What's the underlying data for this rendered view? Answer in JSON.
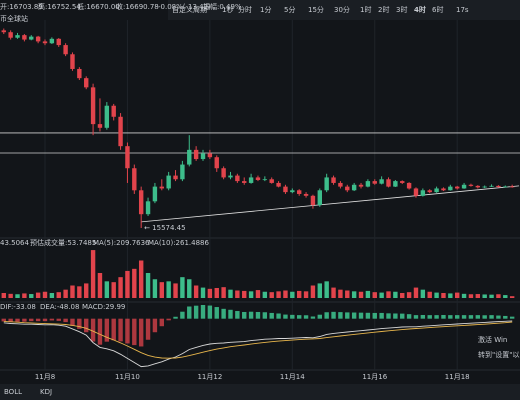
{
  "header": {
    "site": "币全球站",
    "ohlc": [
      "开:16703.89",
      "高:16752.54",
      "低:16670.00",
      "收:16690.78",
      "-0.08%(-13.42)",
      "振幅:0.49%"
    ]
  },
  "toolbar": {
    "periods": [
      "自定义周期",
      "1秒",
      "分时",
      "1分",
      "5分",
      "15分",
      "30分",
      "1时",
      "2时",
      "3时",
      "4时",
      "6时",
      "17s"
    ],
    "active": 10
  },
  "bottom_tabs": [
    "BOLL",
    "KDJ"
  ],
  "watermark": [
    "激活 Win",
    "转到\"设置\"以"
  ],
  "chart_data": {
    "type": "candlestick",
    "categories": [
      null,
      null,
      null,
      null,
      null,
      null,
      "11月8",
      null,
      null,
      null,
      null,
      null,
      null,
      null,
      null,
      null,
      null,
      null,
      "11月10",
      null,
      null,
      null,
      null,
      null,
      null,
      null,
      null,
      null,
      null,
      null,
      "11月12",
      null,
      null,
      null,
      null,
      null,
      null,
      null,
      null,
      null,
      null,
      null,
      "11月14",
      null,
      null,
      null,
      null,
      null,
      null,
      null,
      null,
      null,
      null,
      null,
      "11月16",
      null,
      null,
      null,
      null,
      null,
      null,
      null,
      null,
      null,
      null,
      null,
      "11月18",
      null,
      null,
      null,
      null,
      null,
      null,
      null,
      null
    ],
    "candles": [
      [
        20950,
        21000,
        20850,
        20900
      ],
      [
        20900,
        20950,
        20700,
        20750
      ],
      [
        20750,
        20880,
        20720,
        20820
      ],
      [
        20820,
        20850,
        20650,
        20700
      ],
      [
        20700,
        20820,
        20680,
        20780
      ],
      [
        20780,
        20800,
        20600,
        20650
      ],
      [
        20650,
        20700,
        20550,
        20600
      ],
      [
        20600,
        20760,
        20580,
        20720
      ],
      [
        20720,
        20740,
        20500,
        20550
      ],
      [
        20550,
        20600,
        20250,
        20300
      ],
      [
        20300,
        20350,
        19850,
        19900
      ],
      [
        19900,
        19950,
        19600,
        19650
      ],
      [
        19650,
        19700,
        19350,
        19400
      ],
      [
        19400,
        19500,
        18100,
        18400
      ],
      [
        18400,
        19100,
        18200,
        18300
      ],
      [
        18300,
        19000,
        18250,
        18900
      ],
      [
        18900,
        18950,
        18500,
        18600
      ],
      [
        18600,
        18700,
        17700,
        17800
      ],
      [
        17800,
        17900,
        16800,
        17200
      ],
      [
        17200,
        17300,
        16500,
        16600
      ],
      [
        16600,
        16700,
        15574.45,
        15950
      ],
      [
        15950,
        16400,
        15900,
        16300
      ],
      [
        16300,
        16800,
        16250,
        16700
      ],
      [
        16700,
        16900,
        16600,
        16650
      ],
      [
        16650,
        17100,
        16600,
        17000
      ],
      [
        17000,
        17150,
        16850,
        16900
      ],
      [
        16900,
        17400,
        16850,
        17300
      ],
      [
        17300,
        18100,
        17250,
        17700
      ],
      [
        17700,
        17800,
        17400,
        17450
      ],
      [
        17450,
        17700,
        17400,
        17600
      ],
      [
        17600,
        17700,
        17450,
        17500
      ],
      [
        17500,
        17550,
        17100,
        17200
      ],
      [
        17200,
        17250,
        16900,
        16950
      ],
      [
        16950,
        17100,
        16900,
        17000
      ],
      [
        17000,
        17050,
        16800,
        16850
      ],
      [
        16850,
        16950,
        16750,
        16800
      ],
      [
        16800,
        17050,
        16780,
        16950
      ],
      [
        16950,
        17000,
        16850,
        16880
      ],
      [
        16880,
        16980,
        16850,
        16900
      ],
      [
        16900,
        16950,
        16780,
        16800
      ],
      [
        16800,
        16850,
        16680,
        16700
      ],
      [
        16700,
        16750,
        16500,
        16550
      ],
      [
        16550,
        16650,
        16520,
        16600
      ],
      [
        16600,
        16630,
        16450,
        16500
      ],
      [
        16500,
        16550,
        16400,
        16450
      ],
      [
        16450,
        16480,
        16100,
        16200
      ],
      [
        16200,
        16650,
        16150,
        16600
      ],
      [
        16600,
        17050,
        16550,
        16950
      ],
      [
        16950,
        17000,
        16750,
        16800
      ],
      [
        16800,
        16850,
        16650,
        16700
      ],
      [
        16700,
        16750,
        16550,
        16600
      ],
      [
        16600,
        16800,
        16580,
        16750
      ],
      [
        16750,
        16800,
        16650,
        16700
      ],
      [
        16700,
        16900,
        16680,
        16850
      ],
      [
        16850,
        16900,
        16750,
        16780
      ],
      [
        16780,
        16980,
        16760,
        16900
      ],
      [
        16900,
        16950,
        16680,
        16700
      ],
      [
        16700,
        16880,
        16690,
        16850
      ],
      [
        16850,
        16870,
        16770,
        16800
      ],
      [
        16800,
        16820,
        16620,
        16650
      ],
      [
        16650,
        16680,
        16400,
        16450
      ],
      [
        16450,
        16650,
        16430,
        16600
      ],
      [
        16600,
        16630,
        16520,
        16550
      ],
      [
        16550,
        16700,
        16530,
        16650
      ],
      [
        16650,
        16680,
        16580,
        16600
      ],
      [
        16600,
        16750,
        16590,
        16700
      ],
      [
        16700,
        16720,
        16620,
        16650
      ],
      [
        16650,
        16800,
        16640,
        16750
      ],
      [
        16750,
        16780,
        16700,
        16720
      ],
      [
        16720,
        16740,
        16650,
        16680
      ],
      [
        16680,
        16730,
        16660,
        16700
      ],
      [
        16700,
        16760,
        16690,
        16720
      ],
      [
        16720,
        16740,
        16670,
        16690
      ],
      [
        16690,
        16730,
        16680,
        16703.89
      ],
      [
        16703.89,
        16752.54,
        16670,
        16690.78
      ]
    ],
    "up_color": "#3dbd8b",
    "down_color": "#e2444c",
    "ylim": [
      15384,
      21232
    ],
    "hlines": [
      18160,
      17615
    ],
    "trendline": {
      "x": [
        20,
        75
      ],
      "y": [
        15740,
        16720
      ]
    },
    "volume": {
      "values": [
        120,
        100,
        90,
        110,
        95,
        130,
        150,
        120,
        140,
        200,
        300,
        280,
        350,
        1150,
        600,
        400,
        380,
        500,
        650,
        700,
        900,
        600,
        450,
        380,
        400,
        350,
        500,
        450,
        300,
        250,
        220,
        240,
        260,
        200,
        180,
        170,
        160,
        190,
        150,
        140,
        160,
        180,
        150,
        170,
        160,
        300,
        350,
        400,
        250,
        200,
        180,
        160,
        150,
        170,
        140,
        130,
        160,
        150,
        120,
        140,
        250,
        200,
        150,
        130,
        120,
        110,
        130,
        100,
        90,
        95,
        85,
        80,
        90,
        70,
        43.5064
      ],
      "ylim": [
        0,
        1200
      ],
      "labels": [
        "43.5064",
        "预估成交量:53.7485",
        "MA(5):209.7636",
        "MA(10):261.4886"
      ]
    },
    "macd": {
      "ylim": [
        -750,
        200
      ],
      "dif": [
        -60,
        -70,
        -75,
        -80,
        -80,
        -85,
        -90,
        -88,
        -95,
        -110,
        -150,
        -190,
        -240,
        -350,
        -420,
        -440,
        -470,
        -520,
        -580,
        -640,
        -700,
        -690,
        -660,
        -630,
        -590,
        -560,
        -510,
        -450,
        -420,
        -390,
        -370,
        -360,
        -355,
        -345,
        -340,
        -335,
        -320,
        -310,
        -300,
        -295,
        -290,
        -290,
        -285,
        -280,
        -275,
        -280,
        -260,
        -230,
        -215,
        -205,
        -195,
        -185,
        -175,
        -165,
        -155,
        -145,
        -138,
        -130,
        -122,
        -118,
        -118,
        -110,
        -104,
        -97,
        -90,
        -84,
        -78,
        -72,
        -66,
        -60,
        -55,
        -48,
        -43,
        -38,
        -33.08
      ],
      "dea": [
        -40,
        -46,
        -52,
        -58,
        -62,
        -67,
        -72,
        -75,
        -79,
        -85,
        -98,
        -116,
        -141,
        -183,
        -230,
        -272,
        -312,
        -354,
        -399,
        -447,
        -497,
        -536,
        -561,
        -575,
        -578,
        -574,
        -561,
        -539,
        -515,
        -490,
        -466,
        -445,
        -427,
        -410,
        -396,
        -384,
        -371,
        -359,
        -347,
        -337,
        -328,
        -320,
        -313,
        -306,
        -300,
        -296,
        -289,
        -277,
        -265,
        -253,
        -241,
        -230,
        -219,
        -208,
        -197,
        -187,
        -177,
        -168,
        -159,
        -151,
        -144,
        -137,
        -130,
        -123,
        -117,
        -110,
        -104,
        -98,
        -92,
        -86,
        -80,
        -74,
        -66,
        -58,
        -48.08
      ],
      "hist": [
        -40,
        -48,
        -46,
        -44,
        -36,
        -36,
        -36,
        -26,
        -32,
        -50,
        -104,
        -148,
        -198,
        -334,
        -380,
        -336,
        -316,
        -332,
        -362,
        -386,
        -406,
        -308,
        -198,
        -110,
        -24,
        28,
        102,
        178,
        190,
        200,
        192,
        170,
        144,
        130,
        112,
        98,
        102,
        98,
        94,
        84,
        76,
        60,
        56,
        52,
        50,
        32,
        58,
        94,
        100,
        96,
        92,
        90,
        88,
        86,
        84,
        84,
        78,
        76,
        74,
        66,
        52,
        54,
        52,
        52,
        54,
        52,
        52,
        52,
        52,
        52,
        50,
        52,
        46,
        40,
        29.99
      ],
      "dif_color": "#d8d8d8",
      "dea_color": "#e8b64c",
      "labels": [
        "DIF:-33.08",
        "DEA:-48.08",
        "MACD:29.99"
      ]
    }
  }
}
